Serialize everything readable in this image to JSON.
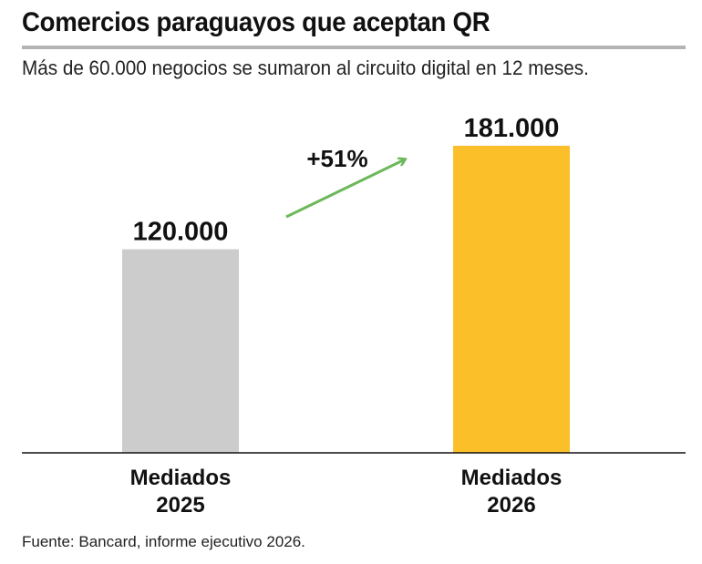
{
  "header": {
    "title": "Comercios paraguayos que aceptan QR",
    "subtitle": "Más de 60.000 negocios se sumaron al circuito digital en 12 meses."
  },
  "footer": {
    "source": "Fuente: Bancard, informe ejecutivo 2026."
  },
  "chart_data": {
    "type": "bar",
    "categories": [
      [
        "Mediados",
        "2025"
      ],
      [
        "Mediados",
        "2026"
      ]
    ],
    "values": [
      120000,
      181000
    ],
    "value_labels": [
      "120.000",
      "181.000"
    ],
    "colors": [
      "#cccccc",
      "#fbbf2a"
    ],
    "ylim": [
      0,
      181000
    ],
    "grid": false,
    "legend": "none",
    "annotation": {
      "text": "+51%",
      "color": "#6cb85a",
      "type": "arrow"
    }
  }
}
